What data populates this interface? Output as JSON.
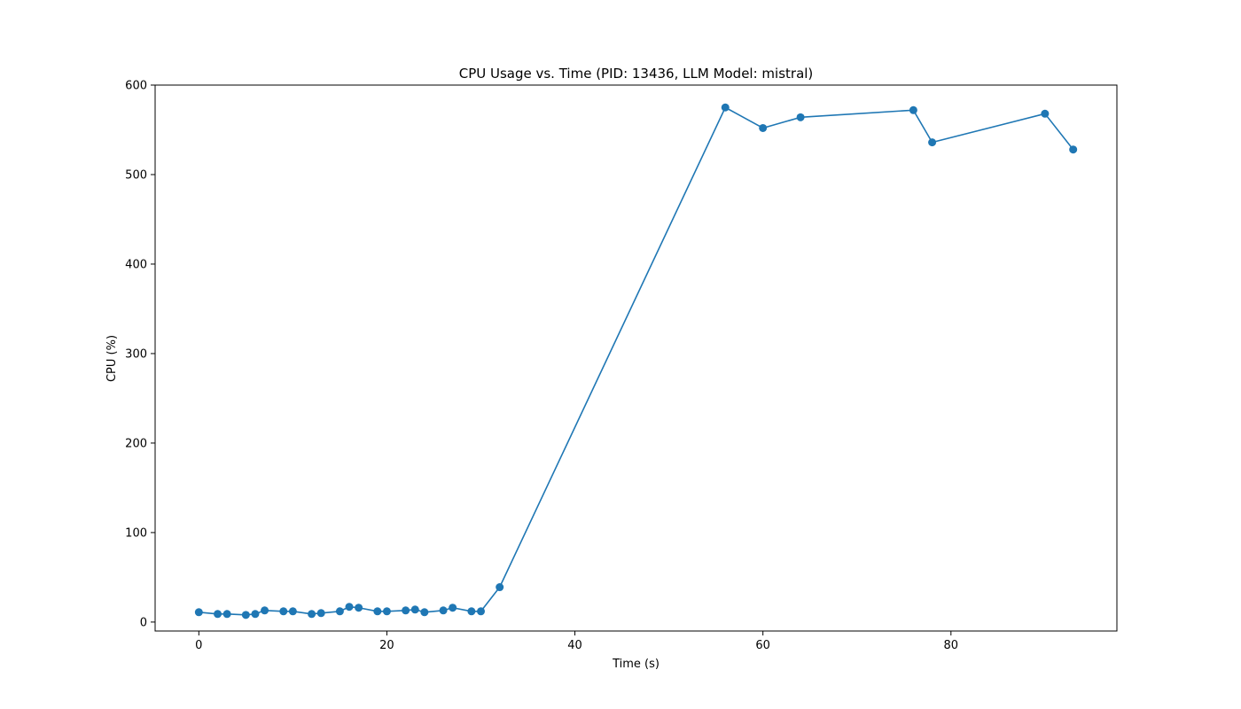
{
  "chart_data": {
    "type": "line",
    "title": "CPU Usage vs. Time (PID: 13436, LLM Model: mistral)",
    "xlabel": "Time (s)",
    "ylabel": "CPU (%)",
    "xlim": [
      -4.65,
      97.65
    ],
    "ylim": [
      -10,
      600
    ],
    "xticks": [
      0,
      20,
      40,
      60,
      80
    ],
    "yticks": [
      0,
      100,
      200,
      300,
      400,
      500,
      600
    ],
    "grid": false,
    "legend": "none",
    "series": [
      {
        "color": "#1f77b4",
        "marker": "circle",
        "x": [
          0,
          2,
          3,
          5,
          6,
          7,
          9,
          10,
          12,
          13,
          15,
          16,
          17,
          19,
          20,
          22,
          23,
          24,
          26,
          27,
          29,
          30,
          32,
          56,
          60,
          64,
          76,
          78,
          90,
          93
        ],
        "y": [
          11,
          9,
          9,
          8,
          9,
          13,
          12,
          12,
          9,
          10,
          12,
          17,
          16,
          12,
          12,
          13,
          14,
          11,
          13,
          16,
          12,
          12,
          39,
          575,
          552,
          564,
          572,
          536,
          568,
          528
        ]
      }
    ]
  }
}
